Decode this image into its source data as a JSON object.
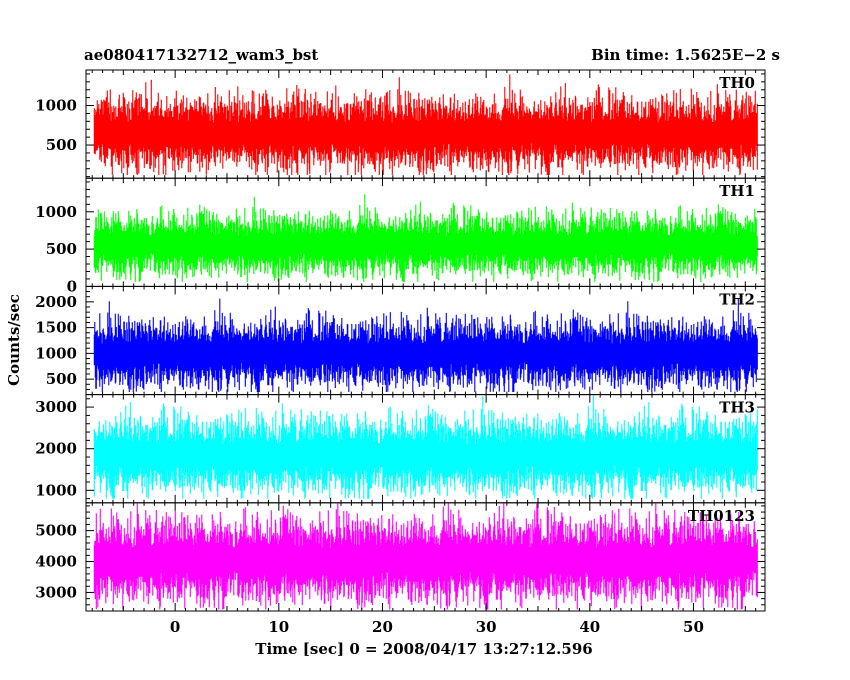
{
  "header": {
    "title": "ae080417132712_wam3_bst",
    "bin_time": "Bin time: 1.5625E−2 s"
  },
  "chart_data": {
    "type": "line",
    "xlabel": "Time [sec] 0 = 2008/04/17 13:27:12.596",
    "ylabel": "Counts/sec",
    "xlim": [
      -8.6,
      56.9
    ],
    "x_ticks": [
      0,
      10,
      20,
      30,
      40,
      50
    ],
    "x_tick_labels": [
      "0",
      "10",
      "20",
      "30",
      "40",
      "50"
    ],
    "data_x_range": [
      -7.8,
      56.2
    ],
    "panels": [
      {
        "name": "TH0",
        "color": "#ff0000",
        "ylim": [
          80,
          1450
        ],
        "yticks": [
          500,
          1000
        ],
        "ytick_labels": [
          "500",
          "1000"
        ],
        "minor_step": 100,
        "baseline": 650,
        "spread": 210,
        "range": [
          120,
          1450
        ]
      },
      {
        "name": "TH1",
        "color": "#00ff00",
        "ylim": [
          0,
          1450
        ],
        "yticks": [
          0,
          500,
          1000
        ],
        "ytick_labels": [
          "0",
          "500",
          "1000"
        ],
        "minor_step": 100,
        "baseline": 560,
        "spread": 190,
        "range": [
          60,
          1450
        ]
      },
      {
        "name": "TH2",
        "color": "#0000ff",
        "ylim": [
          200,
          2300
        ],
        "yticks": [
          500,
          1000,
          1500,
          2000
        ],
        "ytick_labels": [
          "500",
          "1000",
          "1500",
          "2000"
        ],
        "minor_step": 100,
        "baseline": 1000,
        "spread": 300,
        "range": [
          250,
          2300
        ]
      },
      {
        "name": "TH3",
        "color": "#00ffff",
        "ylim": [
          700,
          3300
        ],
        "yticks": [
          1000,
          2000,
          3000
        ],
        "ytick_labels": [
          "1000",
          "2000",
          "3000"
        ],
        "minor_step": 200,
        "baseline": 1850,
        "spread": 420,
        "range": [
          800,
          3300
        ]
      },
      {
        "name": "TH0123",
        "color": "#ff00ff",
        "ylim": [
          2400,
          5900
        ],
        "yticks": [
          3000,
          4000,
          5000
        ],
        "ytick_labels": [
          "3000",
          "4000",
          "5000"
        ],
        "minor_step": 200,
        "baseline": 4050,
        "spread": 620,
        "range": [
          2450,
          5900
        ]
      }
    ]
  }
}
